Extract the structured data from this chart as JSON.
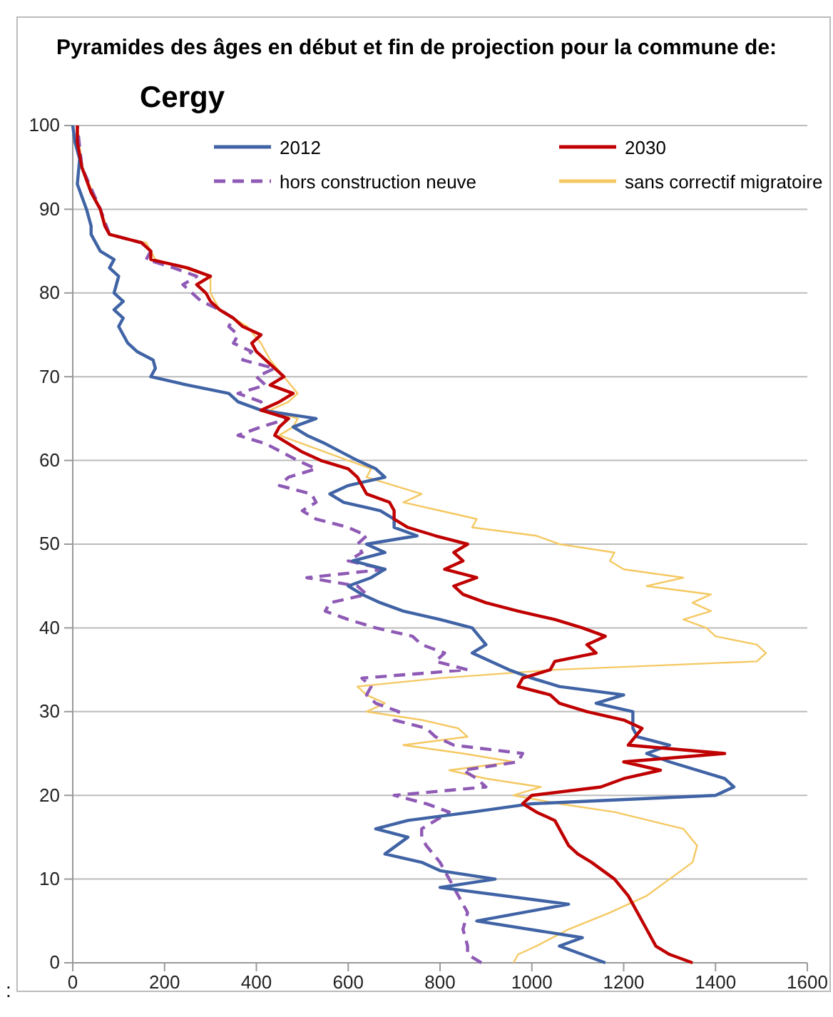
{
  "chart_data": {
    "type": "line",
    "title": "Pyramides des âges en début et fin de projection pour la commune  de:",
    "subtitle": "Cergy",
    "annotations": [
      ":"
    ],
    "xlim": [
      0,
      1600
    ],
    "xticks": [
      0,
      200,
      400,
      600,
      800,
      1000,
      1200,
      1400,
      1600
    ],
    "ylim": [
      0,
      100
    ],
    "yticks": [
      0,
      10,
      20,
      30,
      40,
      50,
      60,
      70,
      80,
      90,
      100
    ],
    "grid": "y",
    "legend": "top",
    "series": [
      {
        "name": "2012",
        "color": "#3f63a5",
        "line_style": "solid",
        "values": [
          0,
          2,
          3,
          5,
          7,
          9,
          10,
          11,
          12,
          13,
          15,
          16,
          17,
          18,
          19,
          20,
          21,
          22,
          24,
          25,
          26,
          27,
          28,
          30,
          31,
          32,
          33,
          34,
          35,
          36,
          37,
          38,
          40,
          41,
          42,
          43,
          44,
          45,
          46,
          47,
          48,
          49,
          50,
          51,
          52,
          53,
          54,
          55,
          56,
          57,
          58,
          59,
          60,
          62,
          63,
          64,
          65,
          66,
          67,
          68,
          69,
          70,
          71,
          72,
          73,
          74,
          76,
          77,
          78,
          79,
          80,
          82,
          83,
          84,
          85,
          86,
          87,
          88,
          90,
          93,
          96,
          98,
          100
        ],
        "x": [
          1160,
          1060,
          1110,
          880,
          1080,
          800,
          920,
          800,
          760,
          680,
          730,
          660,
          730,
          870,
          1000,
          1400,
          1440,
          1420,
          1300,
          1250,
          1300,
          1230,
          1220,
          1220,
          1140,
          1200,
          1060,
          1000,
          950,
          910,
          870,
          900,
          870,
          800,
          720,
          670,
          630,
          600,
          650,
          680,
          610,
          680,
          640,
          750,
          700,
          700,
          670,
          590,
          560,
          600,
          680,
          660,
          620,
          550,
          510,
          480,
          530,
          410,
          360,
          340,
          250,
          170,
          180,
          175,
          140,
          120,
          100,
          110,
          90,
          110,
          90,
          100,
          80,
          90,
          60,
          50,
          40,
          40,
          30,
          10,
          15,
          5,
          0
        ]
      },
      {
        "name": "2030",
        "color": "#c00000",
        "line_style": "solid",
        "values": [
          0,
          1,
          2,
          3,
          4,
          5,
          7,
          8,
          10,
          12,
          13,
          14,
          15,
          17,
          18,
          19,
          20,
          21,
          22,
          23,
          24,
          25,
          26,
          28,
          29,
          30,
          31,
          32,
          33,
          34,
          35,
          36,
          37,
          38,
          39,
          40,
          41,
          42,
          43,
          44,
          45,
          46,
          47,
          48,
          49,
          50,
          51,
          52,
          53,
          54,
          55,
          56,
          57,
          58,
          59,
          60,
          61,
          62,
          63,
          64,
          65,
          66,
          67,
          68,
          69,
          70,
          72,
          73,
          74,
          75,
          76,
          77,
          78,
          79,
          80,
          81,
          82,
          83,
          84,
          85,
          86,
          87,
          88,
          90,
          92,
          95,
          98,
          100
        ],
        "x": [
          1350,
          1300,
          1270,
          1260,
          1250,
          1240,
          1220,
          1210,
          1180,
          1130,
          1100,
          1080,
          1070,
          1050,
          1010,
          980,
          1000,
          1150,
          1200,
          1280,
          1200,
          1420,
          1210,
          1240,
          1200,
          1120,
          1060,
          1040,
          970,
          980,
          1040,
          1050,
          1140,
          1120,
          1160,
          1110,
          1050,
          970,
          900,
          850,
          830,
          880,
          810,
          850,
          830,
          860,
          790,
          730,
          700,
          700,
          690,
          640,
          630,
          620,
          600,
          540,
          500,
          470,
          440,
          450,
          470,
          410,
          450,
          480,
          430,
          460,
          420,
          400,
          390,
          410,
          370,
          350,
          320,
          300,
          290,
          270,
          300,
          250,
          170,
          170,
          150,
          80,
          70,
          60,
          40,
          20,
          10,
          10
        ]
      },
      {
        "name": "hors construction neuve",
        "color": "#8e5ab5",
        "line_style": "dashed",
        "values": [
          0,
          1,
          2,
          4,
          6,
          8,
          10,
          12,
          14,
          15,
          16,
          18,
          19,
          20,
          21,
          22,
          23,
          24,
          25,
          26,
          27,
          28,
          29,
          30,
          31,
          32,
          33,
          34,
          35,
          36,
          37,
          38,
          39,
          40,
          41,
          42,
          43,
          44,
          45,
          46,
          47,
          48,
          49,
          50,
          51,
          52,
          53,
          54,
          55,
          56,
          57,
          58,
          59,
          60,
          62,
          63,
          64,
          65,
          66,
          67,
          68,
          69,
          70,
          71,
          72,
          73,
          74,
          75,
          76,
          77,
          78,
          79,
          80,
          81,
          82,
          83,
          84,
          85,
          86,
          87,
          90,
          95,
          100
        ],
        "x": [
          890,
          860,
          860,
          850,
          860,
          840,
          820,
          800,
          770,
          760,
          760,
          820,
          770,
          700,
          900,
          880,
          850,
          970,
          980,
          830,
          790,
          770,
          700,
          710,
          660,
          640,
          650,
          630,
          860,
          790,
          810,
          760,
          740,
          660,
          600,
          550,
          560,
          640,
          620,
          510,
          680,
          600,
          630,
          620,
          640,
          600,
          530,
          500,
          530,
          520,
          450,
          470,
          530,
          490,
          420,
          360,
          410,
          470,
          420,
          410,
          360,
          420,
          400,
          440,
          370,
          390,
          350,
          360,
          340,
          350,
          320,
          280,
          260,
          240,
          270,
          220,
          160,
          170,
          150,
          80,
          60,
          20,
          10
        ]
      },
      {
        "name": "sans correctif migratoire",
        "color": "#f5c862",
        "line_style": "solid",
        "values": [
          0,
          1,
          2,
          4,
          6,
          8,
          10,
          12,
          14,
          16,
          18,
          19,
          20,
          21,
          22,
          23,
          24,
          25,
          26,
          27,
          28,
          29,
          30,
          31,
          32,
          33,
          34,
          35,
          36,
          37,
          38,
          39,
          40,
          41,
          42,
          43,
          44,
          45,
          46,
          47,
          48,
          49,
          50,
          51,
          52,
          53,
          54,
          55,
          56,
          57,
          58,
          59,
          60,
          62,
          63,
          64,
          65,
          66,
          67,
          68,
          70,
          72,
          74,
          76,
          78,
          80,
          82,
          84,
          86,
          87,
          90,
          95,
          100
        ],
        "x": [
          960,
          970,
          1010,
          1080,
          1170,
          1250,
          1300,
          1350,
          1360,
          1330,
          1180,
          1060,
          960,
          1020,
          900,
          820,
          960,
          850,
          720,
          860,
          840,
          760,
          640,
          680,
          640,
          620,
          800,
          1050,
          1490,
          1510,
          1490,
          1400,
          1380,
          1330,
          1390,
          1350,
          1390,
          1250,
          1330,
          1200,
          1170,
          1180,
          1060,
          1010,
          870,
          880,
          800,
          720,
          760,
          700,
          640,
          650,
          600,
          500,
          450,
          480,
          490,
          430,
          470,
          490,
          460,
          430,
          410,
          380,
          320,
          300,
          300,
          180,
          160,
          80,
          60,
          20,
          10
        ]
      }
    ]
  }
}
